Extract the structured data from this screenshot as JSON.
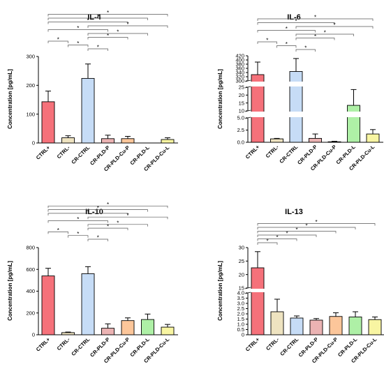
{
  "chart_data": [
    {
      "type": "bar",
      "title": "IL-4",
      "ylabel": "Concentration [pg/mL]",
      "categories": [
        "CTRL+",
        "CTRL-",
        "CR-CTRL",
        "CR-PLD-P",
        "CR-PLD-Cu-P",
        "CR-PLD-L",
        "CR-PLD-Cu-L"
      ],
      "values": [
        143,
        18,
        224,
        15,
        15,
        0,
        12
      ],
      "errors": [
        37,
        7,
        50,
        12,
        8,
        0,
        6
      ],
      "ylim": [
        0,
        300
      ],
      "yticks": [
        0,
        100,
        200,
        300
      ],
      "significance": [
        [
          0,
          1
        ],
        [
          0,
          3
        ],
        [
          0,
          4
        ],
        [
          0,
          5
        ],
        [
          0,
          6
        ],
        [
          1,
          2
        ],
        [
          2,
          3
        ],
        [
          2,
          4
        ],
        [
          2,
          5
        ],
        [
          2,
          6
        ]
      ],
      "star_label": "*"
    },
    {
      "type": "bar",
      "title": "IL-6",
      "ylabel": "Concentration [pg/mL]",
      "categories": [
        "CTRL+",
        "CTRL-",
        "CR-CTRL",
        "CR-PLD-P",
        "CR-PLD-Cu-P",
        "CR-PLD-L",
        "CR-PLD-Cu-L"
      ],
      "values": [
        330,
        0.7,
        345,
        0.8,
        0.1,
        13.5,
        1.7
      ],
      "errors": [
        60,
        0.1,
        62,
        0.9,
        0.1,
        10,
        0.9
      ],
      "axis_breaks": true,
      "yticks": [
        0.0,
        2.5,
        5.0,
        10,
        15,
        20,
        25,
        300,
        320,
        340,
        360,
        380,
        400,
        420
      ],
      "ytick_labels": [
        "0.0",
        "2.5",
        "5.0",
        "10",
        "15",
        "20",
        "25",
        "300",
        "320",
        "340",
        "360",
        "380",
        "400",
        "420"
      ],
      "significance": [
        [
          0,
          1
        ],
        [
          0,
          3
        ],
        [
          0,
          4
        ],
        [
          0,
          6
        ],
        [
          1,
          2
        ],
        [
          2,
          3
        ],
        [
          2,
          4
        ],
        [
          2,
          5
        ],
        [
          2,
          6
        ]
      ],
      "star_label": "*"
    },
    {
      "type": "bar",
      "title": "IL-10",
      "ylabel": "Concentration [pg/mL]",
      "categories": [
        "CTRL+",
        "CTRL-",
        "CR-CTRL",
        "CR-PLD-P",
        "CR-PLD-Cu-P",
        "CR-PLD-L",
        "CR-PLD-Cu-L"
      ],
      "values": [
        540,
        20,
        560,
        60,
        130,
        140,
        70
      ],
      "errors": [
        70,
        5,
        65,
        40,
        25,
        50,
        25
      ],
      "ylim": [
        0,
        800
      ],
      "yticks": [
        0,
        200,
        400,
        600,
        800
      ],
      "significance": [
        [
          0,
          1
        ],
        [
          0,
          3
        ],
        [
          0,
          4
        ],
        [
          0,
          5
        ],
        [
          0,
          6
        ],
        [
          1,
          2
        ],
        [
          2,
          3
        ],
        [
          2,
          4
        ],
        [
          2,
          5
        ],
        [
          2,
          6
        ]
      ],
      "star_label": "*"
    },
    {
      "type": "bar",
      "title": "IL-13",
      "ylabel": "Concentration [pg/mL]",
      "categories": [
        "CTRL+",
        "CTRL-",
        "CR-CTRL",
        "CR-PLD-P",
        "CR-PLD-Cu-P",
        "CR-PLD-L",
        "CR-PLD-Cu-L"
      ],
      "values": [
        22.5,
        2.2,
        1.6,
        1.4,
        1.75,
        1.7,
        1.45
      ],
      "errors": [
        6,
        1.2,
        0.2,
        0.15,
        0.35,
        0.5,
        0.25
      ],
      "axis_breaks": true,
      "yticks": [
        0,
        0.5,
        1.0,
        1.5,
        2.0,
        2.5,
        3.0,
        3.5,
        4.0,
        15,
        20,
        25,
        30
      ],
      "ytick_labels": [
        "0",
        "0.5",
        "1.0",
        "1.5",
        "2.0",
        "2.5",
        "3.0",
        "3.5",
        "4.0",
        "15",
        "20",
        "25",
        "30"
      ],
      "significance": [
        [
          0,
          1
        ],
        [
          0,
          2
        ],
        [
          0,
          3
        ],
        [
          0,
          4
        ],
        [
          0,
          5
        ],
        [
          0,
          6
        ]
      ],
      "star_label": "*"
    }
  ],
  "colors": {
    "bars": [
      "#f5717a",
      "#eee3c0",
      "#c6dcf6",
      "#ebb3b3",
      "#fcc69a",
      "#aef0a6",
      "#f8f5a2"
    ],
    "axis": "#000000",
    "bracket": "#555555"
  }
}
